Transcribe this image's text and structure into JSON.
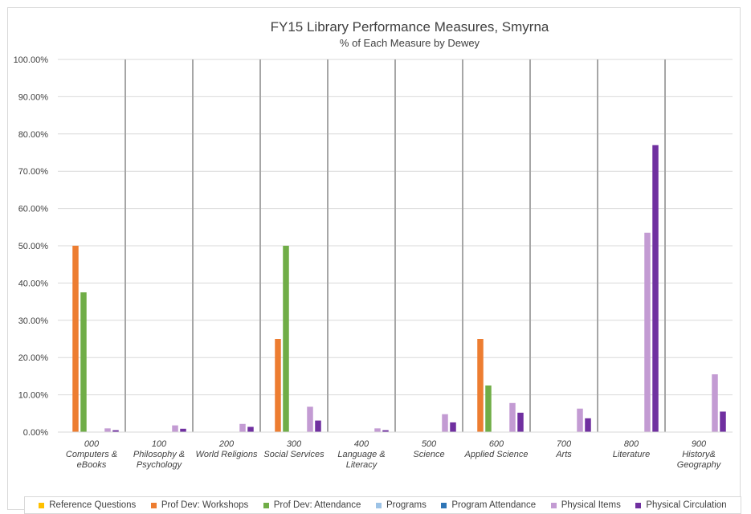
{
  "chart_data": {
    "type": "bar",
    "title": "FY15 Library Performance Measures, Smyrna",
    "subtitle": "% of Each Measure by Dewey",
    "xlabel": "",
    "ylabel": "",
    "ylim": [
      0,
      100
    ],
    "yticks": [
      "0.00%",
      "10.00%",
      "20.00%",
      "30.00%",
      "40.00%",
      "50.00%",
      "60.00%",
      "70.00%",
      "80.00%",
      "90.00%",
      "100.00%"
    ],
    "grid": true,
    "legend_position": "bottom",
    "categories": [
      [
        "000",
        "Computers &",
        "eBooks"
      ],
      [
        "100",
        "Philosophy &",
        "Psychology"
      ],
      [
        "200",
        "World Religions"
      ],
      [
        "300",
        "Social Services"
      ],
      [
        "400",
        "Language &",
        "Literacy"
      ],
      [
        "500",
        "Science"
      ],
      [
        "600",
        "Applied Science"
      ],
      [
        "700",
        "Arts"
      ],
      [
        "800",
        "Literature"
      ],
      [
        "900",
        "History&",
        "Geography"
      ]
    ],
    "series": [
      {
        "name": "Reference Questions",
        "color": "#ffc000",
        "values": [
          0,
          0,
          0,
          0,
          0,
          0,
          0,
          0,
          0,
          0
        ]
      },
      {
        "name": "Prof Dev: Workshops",
        "color": "#ed7d31",
        "values": [
          50,
          0,
          0,
          25,
          0,
          0,
          25,
          0,
          0,
          0
        ]
      },
      {
        "name": "Prof Dev: Attendance",
        "color": "#70ad47",
        "values": [
          37.5,
          0,
          0,
          50,
          0,
          0,
          12.5,
          0,
          0,
          0
        ]
      },
      {
        "name": "Programs",
        "color": "#9dc3e6",
        "values": [
          0,
          0,
          0,
          0,
          0,
          0,
          0,
          0,
          0,
          0
        ]
      },
      {
        "name": "Program Attendance",
        "color": "#2e75b6",
        "values": [
          0,
          0,
          0,
          0,
          0,
          0,
          0,
          0,
          0,
          0
        ]
      },
      {
        "name": "Physical Items",
        "color": "#c39bd3",
        "values": [
          1,
          1.8,
          2.2,
          6.8,
          1,
          4.8,
          7.8,
          6.3,
          53.5,
          15.5
        ]
      },
      {
        "name": "Physical Circulation",
        "color": "#7030a0",
        "values": [
          0.5,
          0.9,
          1.4,
          3.1,
          0.5,
          2.6,
          5.2,
          3.7,
          77,
          5.5
        ]
      }
    ]
  }
}
